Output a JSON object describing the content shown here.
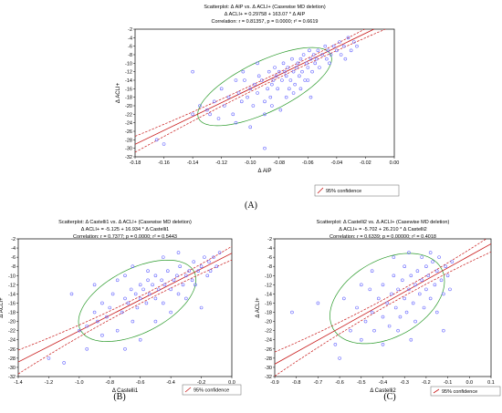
{
  "chart_data": [
    {
      "id": "A",
      "type": "scatter",
      "title": [
        "Scatterplot: Δ AIP vs. Δ ACLI+ (Casewise MD deletion)",
        "Δ ACLI+ = 0.29758 + 163.07 * Δ AIP",
        "Correlation: r = 0.81357, p = 0.0000; r² = 0.6619"
      ],
      "xlabel": "Δ AIP",
      "ylabel": "Δ ACLI+",
      "xlim": [
        -0.18,
        0.0
      ],
      "ylim": [
        -32,
        -2
      ],
      "xticks": [
        "-0.18",
        "-0.16",
        "-0.14",
        "-0.12",
        "-0.10",
        "-0.08",
        "-0.06",
        "-0.04",
        "-0.02",
        "0.00"
      ],
      "yticks": [
        "-32",
        "-30",
        "-28",
        "-26",
        "-24",
        "-22",
        "-20",
        "-18",
        "-16",
        "-14",
        "-12",
        "-10",
        "-8",
        "-6",
        "-4",
        "-2"
      ],
      "legend": "95% confidence",
      "panel_label": "(A)",
      "regression": {
        "intercept": 0.29758,
        "slope": 163.07
      },
      "points": [
        [
          -0.165,
          -28
        ],
        [
          -0.16,
          -29
        ],
        [
          -0.14,
          -22
        ],
        [
          -0.14,
          -12
        ],
        [
          -0.135,
          -20
        ],
        [
          -0.13,
          -21
        ],
        [
          -0.128,
          -22
        ],
        [
          -0.125,
          -19
        ],
        [
          -0.122,
          -23
        ],
        [
          -0.12,
          -16
        ],
        [
          -0.118,
          -20
        ],
        [
          -0.115,
          -18
        ],
        [
          -0.112,
          -22
        ],
        [
          -0.11,
          -24
        ],
        [
          -0.108,
          -17
        ],
        [
          -0.106,
          -19
        ],
        [
          -0.104,
          -14
        ],
        [
          -0.102,
          -18
        ],
        [
          -0.1,
          -16
        ],
        [
          -0.1,
          -25
        ],
        [
          -0.098,
          -20
        ],
        [
          -0.097,
          -15
        ],
        [
          -0.095,
          -17
        ],
        [
          -0.094,
          -13
        ],
        [
          -0.092,
          -14
        ],
        [
          -0.09,
          -19
        ],
        [
          -0.09,
          -30
        ],
        [
          -0.088,
          -16
        ],
        [
          -0.087,
          -12
        ],
        [
          -0.086,
          -18
        ],
        [
          -0.085,
          -15
        ],
        [
          -0.084,
          -14
        ],
        [
          -0.083,
          -11
        ],
        [
          -0.082,
          -13
        ],
        [
          -0.081,
          -16
        ],
        [
          -0.08,
          -12
        ],
        [
          -0.079,
          -21
        ],
        [
          -0.078,
          -14
        ],
        [
          -0.077,
          -10
        ],
        [
          -0.076,
          -12
        ],
        [
          -0.075,
          -13
        ],
        [
          -0.074,
          -11
        ],
        [
          -0.073,
          -16
        ],
        [
          -0.072,
          -14
        ],
        [
          -0.071,
          -9
        ],
        [
          -0.07,
          -12
        ],
        [
          -0.069,
          -15
        ],
        [
          -0.068,
          -11
        ],
        [
          -0.067,
          -10
        ],
        [
          -0.066,
          -13
        ],
        [
          -0.065,
          -9
        ],
        [
          -0.064,
          -12
        ],
        [
          -0.063,
          -8
        ],
        [
          -0.062,
          -14
        ],
        [
          -0.061,
          -10
        ],
        [
          -0.06,
          -11
        ],
        [
          -0.059,
          -7
        ],
        [
          -0.058,
          -9
        ],
        [
          -0.057,
          -12
        ],
        [
          -0.056,
          -8
        ],
        [
          -0.055,
          -10
        ],
        [
          -0.054,
          -9
        ],
        [
          -0.053,
          -7
        ],
        [
          -0.052,
          -11
        ],
        [
          -0.05,
          -8
        ],
        [
          -0.048,
          -6
        ],
        [
          -0.047,
          -9
        ],
        [
          -0.046,
          -7
        ],
        [
          -0.045,
          -10
        ],
        [
          -0.044,
          -8
        ],
        [
          -0.042,
          -6
        ],
        [
          -0.04,
          -7
        ],
        [
          -0.038,
          -5
        ],
        [
          -0.037,
          -8
        ],
        [
          -0.035,
          -6
        ],
        [
          -0.034,
          -9
        ],
        [
          -0.03,
          -7
        ],
        [
          -0.028,
          -5
        ],
        [
          -0.026,
          -6
        ],
        [
          -0.032,
          -4
        ],
        [
          -0.09,
          -22
        ],
        [
          -0.095,
          -10
        ],
        [
          -0.07,
          -17
        ],
        [
          -0.075,
          -18
        ],
        [
          -0.105,
          -12
        ],
        [
          -0.11,
          -14
        ],
        [
          -0.085,
          -20
        ],
        [
          -0.065,
          -16
        ],
        [
          -0.06,
          -14
        ],
        [
          -0.058,
          -18
        ]
      ],
      "conf_offset": 1.8,
      "ellipse": {
        "cx": -0.09,
        "cy": -15.5,
        "rx_len": 0.087,
        "ry_len": 8.5,
        "angle_deg": 0
      }
    },
    {
      "id": "B",
      "type": "scatter",
      "title": [
        "Scatterplot: Δ Castelli1 vs. Δ ACLI+ (Casewise MD deletion)",
        "Δ ACLI+ = -5.125 + 16.934 * Δ Castelli1",
        "Correlation: r = 0.7377; p = 0.0000; r² = 0.5443"
      ],
      "xlabel": "Δ Castelli1",
      "ylabel": "Δ ACLI+",
      "xlim": [
        -1.4,
        0.0
      ],
      "ylim": [
        -32,
        -2
      ],
      "xticks": [
        "-1.4",
        "-1.2",
        "-1.0",
        "-0.8",
        "-0.6",
        "-0.4",
        "-0.2",
        "0.0"
      ],
      "yticks": [
        "-32",
        "-30",
        "-28",
        "-26",
        "-24",
        "-22",
        "-20",
        "-18",
        "-16",
        "-14",
        "-12",
        "-10",
        "-8",
        "-6",
        "-4",
        "-2"
      ],
      "legend": "95% confidence",
      "panel_label": "(B)",
      "regression": {
        "intercept": -5.125,
        "slope": 16.934
      },
      "points": [
        [
          -1.2,
          -28
        ],
        [
          -1.05,
          -14
        ],
        [
          -1.0,
          -22
        ],
        [
          -0.95,
          -21
        ],
        [
          -0.9,
          -18
        ],
        [
          -0.88,
          -20
        ],
        [
          -0.85,
          -16
        ],
        [
          -0.82,
          -19
        ],
        [
          -0.8,
          -17
        ],
        [
          -0.78,
          -14
        ],
        [
          -0.75,
          -22
        ],
        [
          -0.72,
          -18
        ],
        [
          -0.7,
          -15
        ],
        [
          -0.7,
          -10
        ],
        [
          -0.68,
          -16
        ],
        [
          -0.66,
          -13
        ],
        [
          -0.65,
          -20
        ],
        [
          -0.63,
          -14
        ],
        [
          -0.62,
          -17
        ],
        [
          -0.6,
          -12
        ],
        [
          -0.6,
          -15
        ],
        [
          -0.58,
          -13
        ],
        [
          -0.56,
          -16
        ],
        [
          -0.55,
          -11
        ],
        [
          -0.54,
          -14
        ],
        [
          -0.52,
          -12
        ],
        [
          -0.5,
          -15
        ],
        [
          -0.5,
          -10
        ],
        [
          -0.48,
          -13
        ],
        [
          -0.46,
          -11
        ],
        [
          -0.45,
          -16
        ],
        [
          -0.44,
          -12
        ],
        [
          -0.42,
          -9
        ],
        [
          -0.4,
          -13
        ],
        [
          -0.4,
          -18
        ],
        [
          -0.38,
          -11
        ],
        [
          -0.36,
          -10
        ],
        [
          -0.35,
          -14
        ],
        [
          -0.34,
          -8
        ],
        [
          -0.32,
          -12
        ],
        [
          -0.3,
          -10
        ],
        [
          -0.3,
          -15
        ],
        [
          -0.28,
          -9
        ],
        [
          -0.26,
          -11
        ],
        [
          -0.25,
          -7
        ],
        [
          -0.24,
          -12
        ],
        [
          -0.22,
          -9
        ],
        [
          -0.2,
          -8
        ],
        [
          -0.2,
          -17
        ],
        [
          -0.18,
          -6
        ],
        [
          -0.16,
          -10
        ],
        [
          -0.15,
          -7
        ],
        [
          -0.14,
          -9
        ],
        [
          -0.12,
          -6
        ],
        [
          -0.1,
          -8
        ],
        [
          -0.08,
          -5
        ],
        [
          -0.9,
          -12
        ],
        [
          -0.85,
          -23
        ],
        [
          -0.75,
          -11
        ],
        [
          -0.65,
          -8
        ],
        [
          -0.55,
          -9
        ],
        [
          -0.45,
          -6
        ],
        [
          -0.35,
          -5
        ],
        [
          -0.95,
          -26
        ],
        [
          -1.1,
          -29
        ],
        [
          -0.6,
          -24
        ],
        [
          -0.5,
          -20
        ],
        [
          -0.7,
          -26
        ]
      ],
      "conf_offset": 2.2,
      "ellipse": {
        "cx": -0.62,
        "cy": -15.5,
        "rx_len": 0.67,
        "ry_len": 10.0,
        "angle_deg": 0
      }
    },
    {
      "id": "C",
      "type": "scatter",
      "title": [
        "Scatterplot: Δ Castelli2 vs. Δ ACLI+ (Casewise MD deletion)",
        "Δ ACLI+ = -5.702 + 26.210 * Δ Castelli2",
        "Correlation: r = 0.6339; p = 0.00000; r² = 0.4018"
      ],
      "xlabel": "Δ Castelli2",
      "ylabel": "Δ ACLI+",
      "xlim": [
        -0.9,
        0.1
      ],
      "ylim": [
        -32,
        -2
      ],
      "xticks": [
        "-0.9",
        "-0.8",
        "-0.7",
        "-0.6",
        "-0.5",
        "-0.4",
        "-0.3",
        "-0.2",
        "-0.1",
        "0.0",
        "0.1"
      ],
      "yticks": [
        "-32",
        "-30",
        "-28",
        "-26",
        "-24",
        "-22",
        "-20",
        "-18",
        "-16",
        "-14",
        "-12",
        "-10",
        "-8",
        "-6",
        "-4",
        "-2"
      ],
      "legend": "95% confidence",
      "panel_label": "(C)",
      "regression": {
        "intercept": -5.702,
        "slope": 26.21
      },
      "points": [
        [
          -0.82,
          -18
        ],
        [
          -0.7,
          -16
        ],
        [
          -0.62,
          -25
        ],
        [
          -0.6,
          -28
        ],
        [
          -0.55,
          -22
        ],
        [
          -0.52,
          -17
        ],
        [
          -0.5,
          -24
        ],
        [
          -0.48,
          -20
        ],
        [
          -0.46,
          -13
        ],
        [
          -0.45,
          -18
        ],
        [
          -0.44,
          -22
        ],
        [
          -0.42,
          -15
        ],
        [
          -0.4,
          -19
        ],
        [
          -0.4,
          -12
        ],
        [
          -0.38,
          -16
        ],
        [
          -0.37,
          -21
        ],
        [
          -0.36,
          -14
        ],
        [
          -0.35,
          -10
        ],
        [
          -0.34,
          -17
        ],
        [
          -0.33,
          -13
        ],
        [
          -0.32,
          -19
        ],
        [
          -0.31,
          -11
        ],
        [
          -0.3,
          -15
        ],
        [
          -0.3,
          -8
        ],
        [
          -0.29,
          -18
        ],
        [
          -0.28,
          -13
        ],
        [
          -0.27,
          -10
        ],
        [
          -0.26,
          -16
        ],
        [
          -0.25,
          -12
        ],
        [
          -0.25,
          -20
        ],
        [
          -0.24,
          -9
        ],
        [
          -0.23,
          -14
        ],
        [
          -0.22,
          -11
        ],
        [
          -0.21,
          -17
        ],
        [
          -0.2,
          -8
        ],
        [
          -0.2,
          -13
        ],
        [
          -0.19,
          -10
        ],
        [
          -0.18,
          -15
        ],
        [
          -0.17,
          -7
        ],
        [
          -0.16,
          -12
        ],
        [
          -0.15,
          -9
        ],
        [
          -0.15,
          -18
        ],
        [
          -0.14,
          -6
        ],
        [
          -0.13,
          -11
        ],
        [
          -0.12,
          -14
        ],
        [
          -0.11,
          -8
        ],
        [
          -0.1,
          -10
        ],
        [
          -0.09,
          -13
        ],
        [
          -0.08,
          -7
        ],
        [
          -0.35,
          -6
        ],
        [
          -0.28,
          -5
        ],
        [
          -0.22,
          -6
        ],
        [
          -0.18,
          -5
        ],
        [
          -0.4,
          -25
        ],
        [
          -0.33,
          -22
        ],
        [
          -0.27,
          -24
        ],
        [
          -0.12,
          -22
        ],
        [
          -0.5,
          -12
        ],
        [
          -0.58,
          -15
        ],
        [
          -0.45,
          -9
        ]
      ],
      "conf_offset": 2.4,
      "ellipse": {
        "cx": -0.38,
        "cy": -15.0,
        "rx_len": 0.46,
        "ry_len": 12.0,
        "angle_deg": 0
      }
    }
  ]
}
